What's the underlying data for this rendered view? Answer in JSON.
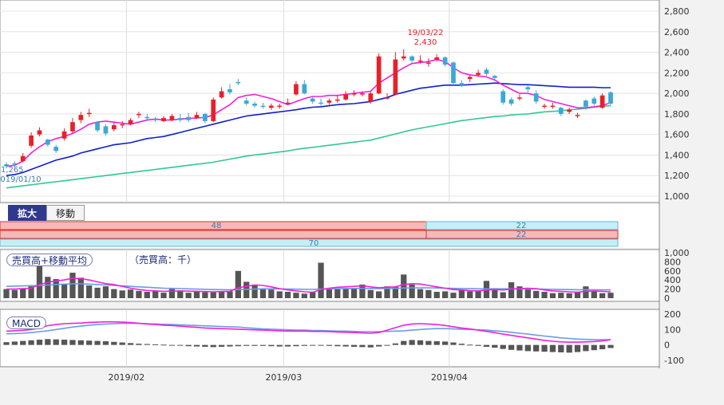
{
  "toolbar": {
    "zoom_label": "拡大",
    "move_label": "移動"
  },
  "annotations": {
    "peak_date": "19/03/22",
    "peak_value": "2,430",
    "start_value": "1,265",
    "start_date": "2019/01/10"
  },
  "range_bar": {
    "top_left": "48",
    "top_right": "22",
    "bottom_right": "22",
    "bottom_center": "70"
  },
  "volume_panel": {
    "title": "売買高+移動平均",
    "unit": "（売買高：千）"
  },
  "macd_panel": {
    "title": "MACD"
  },
  "colors": {
    "up": "#e8202a",
    "down": "#3aa8d8",
    "ma_short": "#f020d8",
    "ma_mid": "#1020c8",
    "ma_long": "#30c890",
    "volume": "#555555",
    "vol_ma": "#f020d8",
    "vol_ma2": "#6a9be8",
    "macd": "#f020d8",
    "signal": "#6a9be8"
  },
  "chart_data": [
    {
      "type": "candlestick",
      "title": "",
      "x": [
        "2019/01/10",
        "2019/01/11",
        "2019/01/15",
        "2019/01/16",
        "2019/01/17",
        "2019/01/18",
        "2019/01/21",
        "2019/01/22",
        "2019/01/23",
        "2019/01/24",
        "2019/01/25",
        "2019/01/28",
        "2019/01/29",
        "2019/01/30",
        "2019/01/31",
        "2019/02/01",
        "2019/02/04",
        "2019/02/05",
        "2019/02/06",
        "2019/02/07",
        "2019/02/08",
        "2019/02/12",
        "2019/02/13",
        "2019/02/14",
        "2019/02/15",
        "2019/02/18",
        "2019/02/19",
        "2019/02/20",
        "2019/02/21",
        "2019/02/22",
        "2019/02/25",
        "2019/02/26",
        "2019/02/27",
        "2019/02/28",
        "2019/03/01",
        "2019/03/04",
        "2019/03/05",
        "2019/03/06",
        "2019/03/07",
        "2019/03/08",
        "2019/03/11",
        "2019/03/12",
        "2019/03/13",
        "2019/03/14",
        "2019/03/15",
        "2019/03/18",
        "2019/03/19",
        "2019/03/20",
        "2019/03/22",
        "2019/03/25",
        "2019/03/26",
        "2019/03/27",
        "2019/03/28",
        "2019/03/29",
        "2019/04/01",
        "2019/04/02",
        "2019/04/03",
        "2019/04/04",
        "2019/04/05",
        "2019/04/08",
        "2019/04/09",
        "2019/04/10",
        "2019/04/11",
        "2019/04/12",
        "2019/04/15",
        "2019/04/16",
        "2019/04/17",
        "2019/04/18",
        "2019/04/19",
        "2019/04/22",
        "2019/04/23",
        "2019/04/24",
        "2019/04/25",
        "2019/04/26"
      ],
      "open": [
        1310,
        1320,
        1340,
        1490,
        1600,
        1550,
        1480,
        1560,
        1630,
        1740,
        1800,
        1720,
        1680,
        1650,
        1690,
        1700,
        1790,
        1770,
        1750,
        1730,
        1740,
        1760,
        1770,
        1760,
        1800,
        1730,
        1960,
        2040,
        2110,
        1930,
        1900,
        1880,
        1860,
        1870,
        1900,
        1990,
        2090,
        1950,
        1910,
        1910,
        1930,
        1940,
        1990,
        1990,
        1920,
        2000,
        1950,
        1990,
        2340,
        2360,
        2320,
        2290,
        2330,
        2350,
        2300,
        2100,
        2140,
        2180,
        2230,
        2170,
        2020,
        1940,
        1950,
        2060,
        2000,
        1870,
        1880,
        1860,
        1820,
        1780,
        1930,
        1950,
        1860,
        2010
      ],
      "close": [
        1290,
        1310,
        1390,
        1590,
        1640,
        1500,
        1440,
        1630,
        1720,
        1790,
        1810,
        1640,
        1610,
        1690,
        1700,
        1740,
        1800,
        1760,
        1740,
        1760,
        1780,
        1740,
        1740,
        1790,
        1730,
        1940,
        2020,
        2010,
        2100,
        1900,
        1880,
        1870,
        1880,
        1880,
        1910,
        2090,
        2000,
        1920,
        1900,
        1930,
        1940,
        1990,
        2000,
        2000,
        2000,
        2360,
        1960,
        2330,
        2360,
        2320,
        2320,
        2300,
        2350,
        2280,
        2100,
        2080,
        2160,
        2200,
        2190,
        2150,
        1910,
        1900,
        1960,
        2040,
        1920,
        1880,
        1880,
        1800,
        1840,
        1790,
        1870,
        1900,
        1980,
        1900
      ],
      "high": [
        1330,
        1340,
        1420,
        1620,
        1670,
        1560,
        1500,
        1660,
        1760,
        1820,
        1850,
        1730,
        1700,
        1720,
        1730,
        1760,
        1820,
        1800,
        1770,
        1780,
        1800,
        1800,
        1810,
        1820,
        1810,
        1960,
        2060,
        2090,
        2140,
        1960,
        1920,
        1910,
        1900,
        1900,
        1950,
        2120,
        2130,
        1970,
        1950,
        1950,
        1980,
        2020,
        2030,
        2020,
        2020,
        2390,
        2000,
        2400,
        2430,
        2370,
        2370,
        2340,
        2380,
        2360,
        2310,
        2130,
        2180,
        2230,
        2250,
        2180,
        2040,
        1960,
        1990,
        2080,
        2030,
        1900,
        1910,
        1870,
        1860,
        1810,
        1940,
        1970,
        2000,
        2020
      ],
      "low": [
        1270,
        1280,
        1330,
        1470,
        1580,
        1480,
        1420,
        1540,
        1610,
        1710,
        1770,
        1620,
        1590,
        1630,
        1660,
        1690,
        1760,
        1740,
        1720,
        1720,
        1730,
        1720,
        1720,
        1750,
        1710,
        1720,
        1950,
        1990,
        2080,
        1880,
        1860,
        1850,
        1840,
        1850,
        1890,
        1980,
        1990,
        1900,
        1880,
        1890,
        1910,
        1930,
        1970,
        1970,
        1900,
        1990,
        1940,
        1980,
        2320,
        2300,
        2290,
        2260,
        2310,
        2260,
        2070,
        2060,
        2110,
        2160,
        2170,
        2120,
        1890,
        1880,
        1930,
        2010,
        1900,
        1850,
        1850,
        1780,
        1800,
        1760,
        1840,
        1880,
        1850,
        1880
      ],
      "ma_short": [
        1290,
        1300,
        1340,
        1420,
        1480,
        1530,
        1560,
        1580,
        1610,
        1650,
        1700,
        1720,
        1730,
        1720,
        1710,
        1700,
        1720,
        1740,
        1750,
        1740,
        1740,
        1750,
        1755,
        1760,
        1765,
        1790,
        1840,
        1890,
        1960,
        1980,
        1990,
        1970,
        1950,
        1920,
        1890,
        1920,
        1950,
        1970,
        1970,
        1980,
        1980,
        1990,
        2000,
        2010,
        2020,
        2100,
        2150,
        2200,
        2250,
        2290,
        2300,
        2310,
        2330,
        2310,
        2250,
        2200,
        2180,
        2170,
        2160,
        2130,
        2080,
        2040,
        2000,
        2000,
        1980,
        1940,
        1920,
        1900,
        1880,
        1860,
        1860,
        1870,
        1880,
        1910
      ],
      "ma_mid": [
        1200,
        1210,
        1230,
        1260,
        1290,
        1320,
        1350,
        1370,
        1390,
        1420,
        1440,
        1460,
        1480,
        1500,
        1510,
        1520,
        1540,
        1560,
        1570,
        1580,
        1600,
        1620,
        1640,
        1660,
        1680,
        1700,
        1720,
        1740,
        1760,
        1780,
        1790,
        1800,
        1810,
        1820,
        1830,
        1840,
        1855,
        1865,
        1870,
        1880,
        1890,
        1895,
        1900,
        1910,
        1920,
        1940,
        1960,
        1990,
        2010,
        2030,
        2050,
        2060,
        2070,
        2080,
        2080,
        2080,
        2085,
        2090,
        2095,
        2100,
        2095,
        2090,
        2085,
        2085,
        2080,
        2075,
        2070,
        2065,
        2060,
        2060,
        2060,
        2060,
        2055,
        2055
      ],
      "ma_long": [
        1080,
        1090,
        1100,
        1110,
        1120,
        1130,
        1140,
        1150,
        1160,
        1170,
        1180,
        1190,
        1200,
        1210,
        1220,
        1230,
        1240,
        1250,
        1260,
        1270,
        1280,
        1290,
        1300,
        1310,
        1320,
        1330,
        1345,
        1360,
        1375,
        1390,
        1400,
        1410,
        1420,
        1430,
        1440,
        1455,
        1465,
        1475,
        1485,
        1495,
        1505,
        1515,
        1525,
        1535,
        1545,
        1565,
        1585,
        1605,
        1625,
        1645,
        1660,
        1675,
        1690,
        1705,
        1720,
        1735,
        1745,
        1755,
        1765,
        1775,
        1780,
        1790,
        1795,
        1800,
        1810,
        1820,
        1825,
        1830,
        1840,
        1845,
        1855,
        1865,
        1875,
        1880
      ],
      "ylim": [
        1000,
        2800
      ],
      "yticks": [
        "1,000",
        "1,200",
        "1,400",
        "1,600",
        "1,800",
        "2,000",
        "2,200",
        "2,400",
        "2,600",
        "2,800"
      ],
      "xticks": [
        "2019/02",
        "2019/03",
        "2019/04"
      ],
      "peak": {
        "date": "19/03/22",
        "value": 2430
      },
      "start": {
        "date": "2019/01/10",
        "value": 1265
      }
    },
    {
      "type": "bar",
      "title": "売買高+移動平均",
      "values": [
        200,
        180,
        210,
        260,
        840,
        470,
        420,
        300,
        560,
        450,
        280,
        230,
        260,
        200,
        170,
        190,
        160,
        140,
        170,
        120,
        200,
        170,
        120,
        160,
        130,
        130,
        140,
        150,
        600,
        360,
        300,
        220,
        190,
        150,
        140,
        120,
        100,
        130,
        780,
        220,
        200,
        220,
        210,
        300,
        180,
        150,
        260,
        250,
        520,
        300,
        200,
        180,
        140,
        150,
        120,
        190,
        150,
        170,
        380,
        190,
        130,
        350,
        260,
        200,
        160,
        140,
        110,
        120,
        110,
        140,
        260,
        150,
        110,
        120
      ],
      "ma": [
        200,
        200,
        210,
        220,
        300,
        350,
        380,
        400,
        440,
        430,
        400,
        360,
        320,
        300,
        260,
        220,
        190,
        170,
        160,
        150,
        155,
        160,
        155,
        150,
        145,
        140,
        145,
        150,
        230,
        260,
        290,
        280,
        250,
        210,
        180,
        160,
        140,
        130,
        190,
        220,
        240,
        250,
        260,
        270,
        250,
        230,
        240,
        250,
        300,
        320,
        310,
        280,
        250,
        220,
        190,
        180,
        165,
        160,
        180,
        190,
        180,
        200,
        210,
        220,
        210,
        180,
        160,
        150,
        140,
        130,
        150,
        160,
        150,
        140
      ],
      "ma2": [
        260,
        265,
        270,
        275,
        280,
        290,
        300,
        310,
        315,
        315,
        310,
        300,
        290,
        280,
        270,
        260,
        250,
        240,
        230,
        220,
        215,
        210,
        205,
        200,
        195,
        190,
        188,
        186,
        190,
        195,
        200,
        205,
        205,
        205,
        200,
        198,
        195,
        193,
        200,
        205,
        208,
        212,
        214,
        216,
        214,
        212,
        214,
        216,
        222,
        226,
        228,
        226,
        224,
        220,
        216,
        212,
        208,
        205,
        206,
        207,
        206,
        206,
        205,
        204,
        202,
        198,
        195,
        192,
        189,
        186,
        186,
        186,
        184,
        182
      ],
      "ylim": [
        0,
        1000
      ],
      "yticks": [
        "0",
        "200",
        "400",
        "600",
        "800",
        "1,000"
      ]
    },
    {
      "type": "bar",
      "title": "MACD",
      "values": [
        18,
        22,
        26,
        30,
        34,
        38,
        36,
        34,
        32,
        30,
        28,
        26,
        24,
        20,
        16,
        12,
        8,
        6,
        4,
        2,
        0,
        -4,
        -8,
        -10,
        -12,
        -14,
        -12,
        -10,
        -8,
        -6,
        -6,
        -6,
        -8,
        -10,
        -10,
        -8,
        -6,
        -4,
        -4,
        -6,
        -8,
        -10,
        -12,
        -14,
        -16,
        -10,
        0,
        10,
        26,
        32,
        30,
        26,
        24,
        22,
        16,
        8,
        2,
        -6,
        -12,
        -18,
        -26,
        -32,
        -36,
        -40,
        -42,
        -44,
        -46,
        -48,
        -50,
        -46,
        -40,
        -34,
        -28,
        -20
      ],
      "macd": [
        90,
        92,
        95,
        100,
        110,
        125,
        132,
        138,
        140,
        142,
        146,
        148,
        150,
        150,
        148,
        145,
        140,
        136,
        132,
        128,
        126,
        122,
        118,
        114,
        110,
        108,
        106,
        104,
        102,
        100,
        98,
        96,
        94,
        92,
        90,
        90,
        90,
        88,
        88,
        86,
        84,
        82,
        80,
        78,
        76,
        80,
        96,
        112,
        128,
        136,
        138,
        136,
        132,
        126,
        118,
        110,
        104,
        96,
        88,
        80,
        70,
        62,
        54,
        46,
        38,
        30,
        24,
        20,
        18,
        18,
        20,
        22,
        26,
        34
      ],
      "signal": [
        72,
        74,
        76,
        80,
        86,
        92,
        100,
        108,
        116,
        122,
        128,
        132,
        136,
        138,
        140,
        140,
        140,
        138,
        136,
        134,
        132,
        130,
        128,
        126,
        124,
        122,
        120,
        118,
        116,
        112,
        108,
        104,
        102,
        100,
        98,
        96,
        96,
        94,
        94,
        92,
        90,
        90,
        88,
        86,
        86,
        86,
        88,
        90,
        92,
        96,
        100,
        104,
        106,
        106,
        104,
        102,
        100,
        98,
        96,
        92,
        88,
        82,
        76,
        70,
        64,
        58,
        52,
        46,
        42,
        38,
        36,
        34,
        34,
        34
      ],
      "ylim": [
        -150,
        200
      ],
      "yticks": [
        "-100",
        "0",
        "100",
        "200"
      ]
    }
  ]
}
